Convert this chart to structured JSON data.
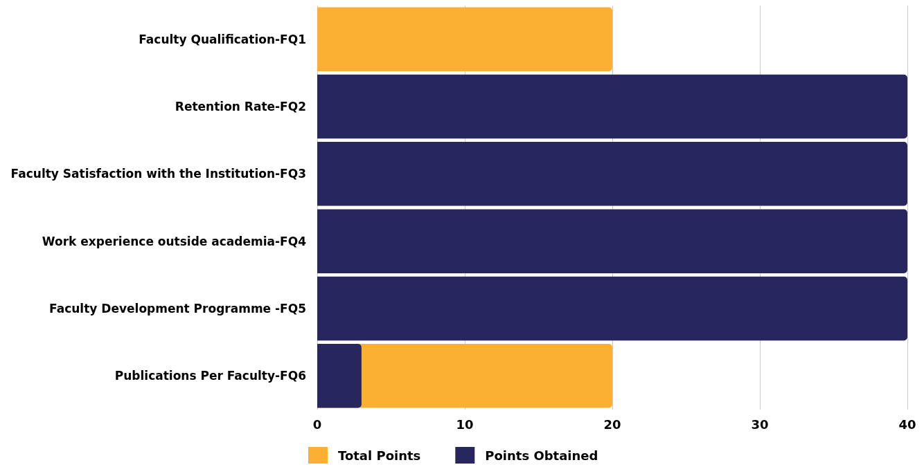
{
  "chart_data": {
    "type": "bar",
    "orientation": "horizontal",
    "categories": [
      "Faculty Qualification-FQ1",
      "Retention Rate-FQ2",
      "Faculty Satisfaction with the Institution-FQ3",
      "Work experience outside academia-FQ4",
      "Faculty Development Programme -FQ5",
      "Publications Per Faculty-FQ6"
    ],
    "series": [
      {
        "name": "Total Points",
        "color": "#fbb034",
        "values": [
          20,
          null,
          null,
          null,
          null,
          20
        ]
      },
      {
        "name": "Points Obtained",
        "color": "#27275e",
        "values": [
          0,
          40,
          40,
          40,
          40,
          3
        ]
      }
    ],
    "xlim": [
      0,
      40
    ],
    "xticks": [
      0,
      10,
      20,
      30,
      40
    ],
    "grid": "x",
    "legend": "bottom"
  }
}
